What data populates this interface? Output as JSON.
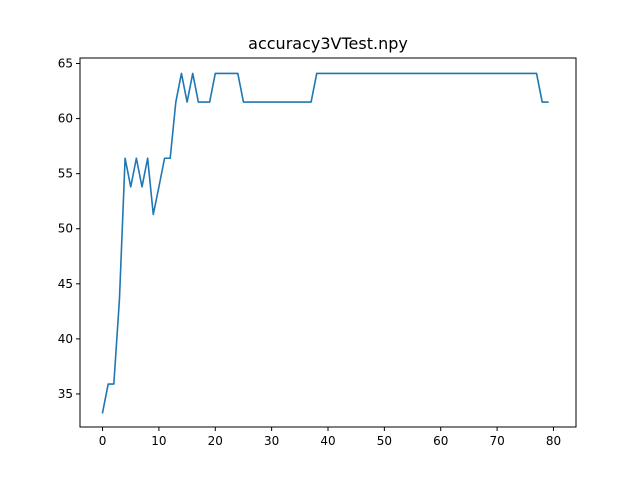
{
  "chart_data": {
    "type": "line",
    "title": "accuracy3VTest.npy",
    "xlabel": "",
    "ylabel": "",
    "xlim": [
      -4,
      84
    ],
    "ylim": [
      32,
      65.5
    ],
    "xticks": [
      0,
      10,
      20,
      30,
      40,
      50,
      60,
      70,
      80
    ],
    "yticks": [
      35,
      40,
      45,
      50,
      55,
      60,
      65
    ],
    "grid": false,
    "series": [
      {
        "color": "#1f77b4",
        "x": [
          0,
          1,
          2,
          3,
          4,
          5,
          6,
          7,
          8,
          9,
          10,
          11,
          12,
          13,
          14,
          15,
          16,
          17,
          18,
          19,
          20,
          21,
          22,
          23,
          24,
          25,
          26,
          27,
          28,
          29,
          30,
          31,
          32,
          33,
          34,
          35,
          36,
          37,
          38,
          39,
          40,
          41,
          42,
          43,
          44,
          45,
          46,
          47,
          48,
          49,
          50,
          51,
          52,
          53,
          54,
          55,
          56,
          57,
          58,
          59,
          60,
          61,
          62,
          63,
          64,
          65,
          66,
          67,
          68,
          69,
          70,
          71,
          72,
          73,
          74,
          75,
          76,
          77,
          78,
          79
        ],
        "y": [
          33.3,
          35.9,
          35.9,
          43.6,
          56.4,
          53.8,
          56.4,
          53.8,
          56.4,
          51.3,
          53.8,
          56.4,
          56.4,
          61.5,
          64.1,
          61.5,
          64.1,
          61.5,
          61.5,
          61.5,
          64.1,
          64.1,
          64.1,
          64.1,
          64.1,
          61.5,
          61.5,
          61.5,
          61.5,
          61.5,
          61.5,
          61.5,
          61.5,
          61.5,
          61.5,
          61.5,
          61.5,
          61.5,
          64.1,
          64.1,
          64.1,
          64.1,
          64.1,
          64.1,
          64.1,
          64.1,
          64.1,
          64.1,
          64.1,
          64.1,
          64.1,
          64.1,
          64.1,
          64.1,
          64.1,
          64.1,
          64.1,
          64.1,
          64.1,
          64.1,
          64.1,
          64.1,
          64.1,
          64.1,
          64.1,
          64.1,
          64.1,
          64.1,
          64.1,
          64.1,
          64.1,
          64.1,
          64.1,
          64.1,
          64.1,
          64.1,
          64.1,
          64.1,
          61.5,
          61.5
        ]
      }
    ]
  }
}
